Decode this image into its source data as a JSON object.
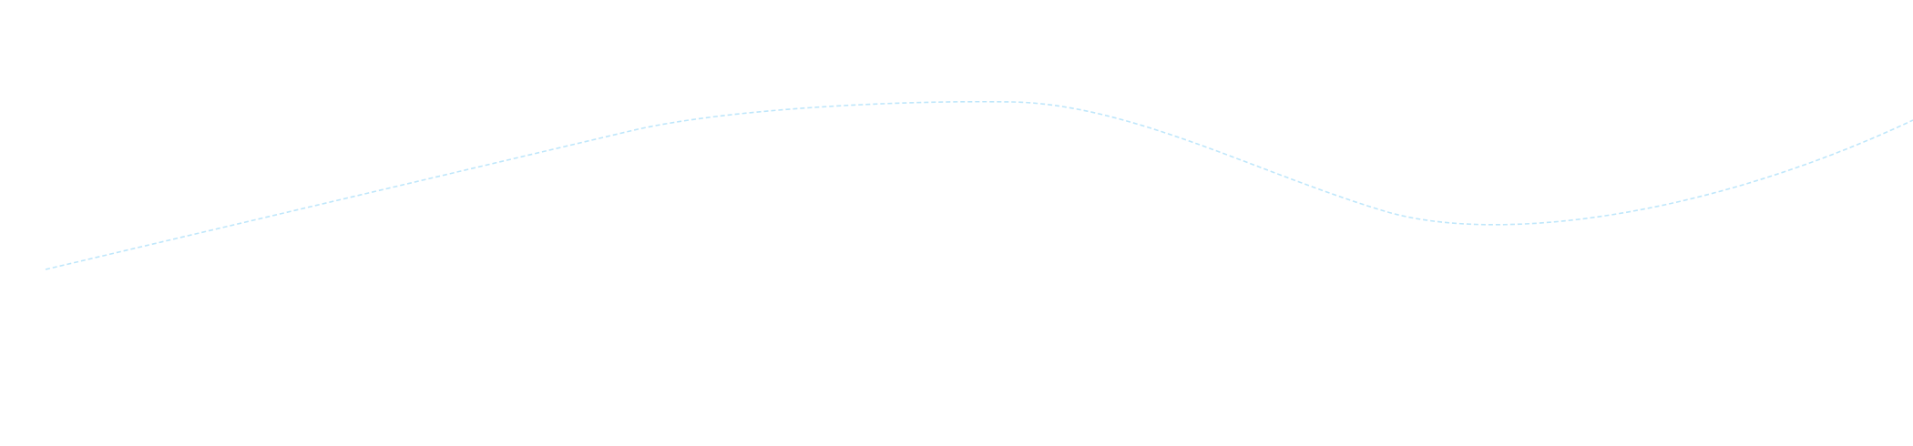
{
  "decoration": {
    "stroke_color": "#bfe7fb",
    "background": "#ffffff"
  }
}
